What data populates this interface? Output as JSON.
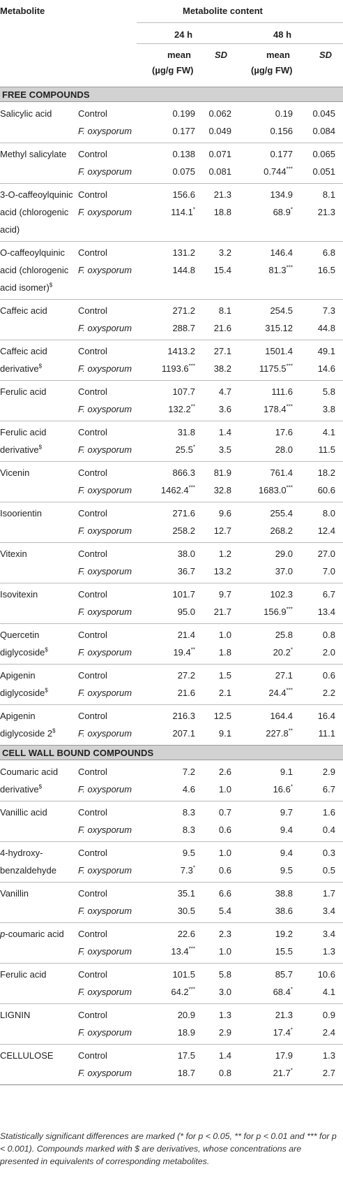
{
  "header": {
    "metabolite_label": "Metabolite",
    "content_label": "Metabolite content",
    "time1": "24 h",
    "time2": "48 h",
    "mean_label": "mean",
    "unit_label": "(µg/g FW)",
    "sd_label": "SD"
  },
  "sections": [
    {
      "title": "FREE COMPOUNDS",
      "rows": [
        {
          "name": [
            "Salicylic acid"
          ],
          "groups": [
            {
              "label": "Control",
              "m24": "0.199",
              "s24": "",
              "sd24": "0.062",
              "m48": "0.19",
              "s48": "",
              "sd48": "0.045"
            },
            {
              "label": "F. oxysporum",
              "m24": "0.177",
              "s24": "",
              "sd24": "0.049",
              "m48": "0.156",
              "s48": "",
              "sd48": "0.084"
            }
          ]
        },
        {
          "name": [
            "Methyl salicylate"
          ],
          "groups": [
            {
              "label": "Control",
              "m24": "0.138",
              "s24": "",
              "sd24": "0.071",
              "m48": "0.177",
              "s48": "",
              "sd48": "0.065"
            },
            {
              "label": "F. oxysporum",
              "m24": "0.075",
              "s24": "",
              "sd24": "0.081",
              "m48": "0.744",
              "s48": "***",
              "sd48": "0.051"
            }
          ]
        },
        {
          "name": [
            "3-O-caffeoylquinic",
            "acid (chlorogenic",
            "acid)"
          ],
          "groups": [
            {
              "label": "Control",
              "m24": "156.6",
              "s24": "",
              "sd24": "21.3",
              "m48": "134.9",
              "s48": "",
              "sd48": "8.1"
            },
            {
              "label": "F. oxysporum",
              "m24": "114.1",
              "s24": "*",
              "sd24": "18.8",
              "m48": "68.9",
              "s48": "*",
              "sd48": "21.3"
            }
          ]
        },
        {
          "name": [
            "O-caffeoylquinic",
            "acid (chlorogenic",
            "acid isomer)$"
          ],
          "groups": [
            {
              "label": "Control",
              "m24": "131.2",
              "s24": "",
              "sd24": "3.2",
              "m48": "146.4",
              "s48": "",
              "sd48": "6.8"
            },
            {
              "label": "F. oxysporum",
              "m24": "144.8",
              "s24": "",
              "sd24": "15.4",
              "m48": "81.3",
              "s48": "***",
              "sd48": "16.5"
            }
          ]
        },
        {
          "name": [
            "Caffeic acid"
          ],
          "groups": [
            {
              "label": "Control",
              "m24": "271.2",
              "s24": "",
              "sd24": "8.1",
              "m48": "254.5",
              "s48": "",
              "sd48": "7.3"
            },
            {
              "label": "F. oxysporum",
              "m24": "288.7",
              "s24": "",
              "sd24": "21.6",
              "m48": "315.12",
              "s48": "",
              "sd48": "44.8"
            }
          ]
        },
        {
          "name": [
            "Caffeic acid",
            "derivative$"
          ],
          "groups": [
            {
              "label": "Control",
              "m24": "1413.2",
              "s24": "",
              "sd24": "27.1",
              "m48": "1501.4",
              "s48": "",
              "sd48": "49.1"
            },
            {
              "label": "F. oxysporum",
              "m24": "1193.6",
              "s24": "***",
              "sd24": "38.2",
              "m48": "1175.5",
              "s48": "***",
              "sd48": "14.6"
            }
          ]
        },
        {
          "name": [
            "Ferulic acid"
          ],
          "groups": [
            {
              "label": "Control",
              "m24": "107.7",
              "s24": "",
              "sd24": "4.7",
              "m48": "111.6",
              "s48": "",
              "sd48": "5.8"
            },
            {
              "label": "F. oxysporum",
              "m24": "132.2",
              "s24": "**",
              "sd24": "3.6",
              "m48": "178.4",
              "s48": "***",
              "sd48": "3.8"
            }
          ]
        },
        {
          "name": [
            "Ferulic acid",
            "derivative$"
          ],
          "groups": [
            {
              "label": "Control",
              "m24": "31.8",
              "s24": "",
              "sd24": "1.4",
              "m48": "17.6",
              "s48": "",
              "sd48": "4.1"
            },
            {
              "label": "F. oxysporum",
              "m24": "25.5",
              "s24": "*",
              "sd24": "3.5",
              "m48": "28.0",
              "s48": "",
              "sd48": "11.5"
            }
          ]
        },
        {
          "name": [
            "Vicenin"
          ],
          "groups": [
            {
              "label": "Control",
              "m24": "866.3",
              "s24": "",
              "sd24": "81.9",
              "m48": "761.4",
              "s48": "",
              "sd48": "18.2"
            },
            {
              "label": "F. oxysporum",
              "m24": "1462.4",
              "s24": "***",
              "sd24": "32.8",
              "m48": "1683.0",
              "s48": "***",
              "sd48": "60.6"
            }
          ]
        },
        {
          "name": [
            "Isoorientin"
          ],
          "groups": [
            {
              "label": "Control",
              "m24": "271.6",
              "s24": "",
              "sd24": "9.6",
              "m48": "255.4",
              "s48": "",
              "sd48": "8.0"
            },
            {
              "label": "F. oxysporum",
              "m24": "258.2",
              "s24": "",
              "sd24": "12.7",
              "m48": "268.2",
              "s48": "",
              "sd48": "12.4"
            }
          ]
        },
        {
          "name": [
            "Vitexin"
          ],
          "groups": [
            {
              "label": "Control",
              "m24": "38.0",
              "s24": "",
              "sd24": "1.2",
              "m48": "29.0",
              "s48": "",
              "sd48": "27.0"
            },
            {
              "label": "F. oxysporum",
              "m24": "36.7",
              "s24": "",
              "sd24": "13.2",
              "m48": "37.0",
              "s48": "",
              "sd48": "7.0"
            }
          ]
        },
        {
          "name": [
            "Isovitexin"
          ],
          "groups": [
            {
              "label": "Control",
              "m24": "101.7",
              "s24": "",
              "sd24": "9.7",
              "m48": "102.3",
              "s48": "",
              "sd48": "6.7"
            },
            {
              "label": "F. oxysporum",
              "m24": "95.0",
              "s24": "",
              "sd24": "21.7",
              "m48": "156.9",
              "s48": "***",
              "sd48": "13.4"
            }
          ]
        },
        {
          "name": [
            "Quercetin",
            "diglycoside$"
          ],
          "groups": [
            {
              "label": "Control",
              "m24": "21.4",
              "s24": "",
              "sd24": "1.0",
              "m48": "25.8",
              "s48": "",
              "sd48": "0.8"
            },
            {
              "label": "F. oxysporum",
              "m24": "19.4",
              "s24": "**",
              "sd24": "1.8",
              "m48": "20.2",
              "s48": "*",
              "sd48": "2.0"
            }
          ]
        },
        {
          "name": [
            "Apigenin",
            "diglycoside$"
          ],
          "groups": [
            {
              "label": "Control",
              "m24": "27.2",
              "s24": "",
              "sd24": "1.5",
              "m48": "27.1",
              "s48": "",
              "sd48": "0.6"
            },
            {
              "label": "F. oxysporum",
              "m24": "21.6",
              "s24": "",
              "sd24": "2.1",
              "m48": "24.4",
              "s48": "***",
              "sd48": "2.2"
            }
          ]
        },
        {
          "name": [
            "Apigenin",
            "diglycoside 2$"
          ],
          "groups": [
            {
              "label": "Control",
              "m24": "216.3",
              "s24": "",
              "sd24": "12.5",
              "m48": "164.4",
              "s48": "",
              "sd48": "16.4"
            },
            {
              "label": "F. oxysporum",
              "m24": "207.1",
              "s24": "",
              "sd24": "9.1",
              "m48": "227.8",
              "s48": "**",
              "sd48": "11.1"
            }
          ]
        }
      ]
    },
    {
      "title": "CELL WALL BOUND COMPOUNDS",
      "rows": [
        {
          "name": [
            "Coumaric acid",
            "derivative$"
          ],
          "groups": [
            {
              "label": "Control",
              "m24": "7.2",
              "s24": "",
              "sd24": "2.6",
              "m48": "9.1",
              "s48": "",
              "sd48": "2.9"
            },
            {
              "label": "F. oxysporum",
              "m24": "4.6",
              "s24": "",
              "sd24": "1.0",
              "m48": "16.6",
              "s48": "*",
              "sd48": "6.7"
            }
          ]
        },
        {
          "name": [
            "Vanillic acid"
          ],
          "groups": [
            {
              "label": "Control",
              "m24": "8.3",
              "s24": "",
              "sd24": "0.7",
              "m48": "9.7",
              "s48": "",
              "sd48": "1.6"
            },
            {
              "label": "F. oxysporum",
              "m24": "8.3",
              "s24": "",
              "sd24": "0.6",
              "m48": "9.4",
              "s48": "",
              "sd48": "0.4"
            }
          ]
        },
        {
          "name": [
            "4-hydroxy-",
            "benzaldehyde"
          ],
          "groups": [
            {
              "label": "Control",
              "m24": "9.5",
              "s24": "",
              "sd24": "1.0",
              "m48": "9.4",
              "s48": "",
              "sd48": "0.3"
            },
            {
              "label": "F. oxysporum",
              "m24": "7.3",
              "s24": "*",
              "sd24": "0.6",
              "m48": "9.5",
              "s48": "",
              "sd48": "0.5"
            }
          ]
        },
        {
          "name": [
            "Vanillin"
          ],
          "groups": [
            {
              "label": "Control",
              "m24": "35.1",
              "s24": "",
              "sd24": "6.6",
              "m48": "38.8",
              "s48": "",
              "sd48": "1.7"
            },
            {
              "label": "F. oxysporum",
              "m24": "30.5",
              "s24": "",
              "sd24": "5.4",
              "m48": "38.6",
              "s48": "",
              "sd48": "3.4"
            }
          ]
        },
        {
          "name": [
            "p-coumaric acid"
          ],
          "groups": [
            {
              "label": "Control",
              "m24": "22.6",
              "s24": "",
              "sd24": "2.3",
              "m48": "19.2",
              "s48": "",
              "sd48": "3.4"
            },
            {
              "label": "F. oxysporum",
              "m24": "13.4",
              "s24": "***",
              "sd24": "1.0",
              "m48": "15.5",
              "s48": "",
              "sd48": "1.3"
            }
          ]
        },
        {
          "name": [
            "Ferulic acid"
          ],
          "groups": [
            {
              "label": "Control",
              "m24": "101.5",
              "s24": "",
              "sd24": "5.8",
              "m48": "85.7",
              "s48": "",
              "sd48": "10.6"
            },
            {
              "label": "F. oxysporum",
              "m24": "64.2",
              "s24": "***",
              "sd24": "3.0",
              "m48": "68.4",
              "s48": "*",
              "sd48": "4.1"
            }
          ]
        },
        {
          "name": [
            "LIGNIN"
          ],
          "groups": [
            {
              "label": "Control",
              "m24": "20.9",
              "s24": "",
              "sd24": "1.3",
              "m48": "21.3",
              "s48": "",
              "sd48": "0.9"
            },
            {
              "label": "F. oxysporum",
              "m24": "18.9",
              "s24": "",
              "sd24": "2.9",
              "m48": "17.4",
              "s48": "*",
              "sd48": "2.4"
            }
          ]
        },
        {
          "name": [
            "CELLULOSE"
          ],
          "groups": [
            {
              "label": "Control",
              "m24": "17.5",
              "s24": "",
              "sd24": "1.4",
              "m48": "17.9",
              "s48": "",
              "sd48": "1.3"
            },
            {
              "label": "F. oxysporum",
              "m24": "18.7",
              "s24": "",
              "sd24": "0.8",
              "m48": "21.7",
              "s48": "*",
              "sd48": "2.7"
            }
          ]
        }
      ]
    }
  ],
  "footnote": "Statistically significant differences are marked (* for p < 0.05, ** for p < 0.01 and *** for p < 0.001). Compounds marked with $ are derivatives, whose concentrations are presented in equivalents of corresponding metabolites."
}
